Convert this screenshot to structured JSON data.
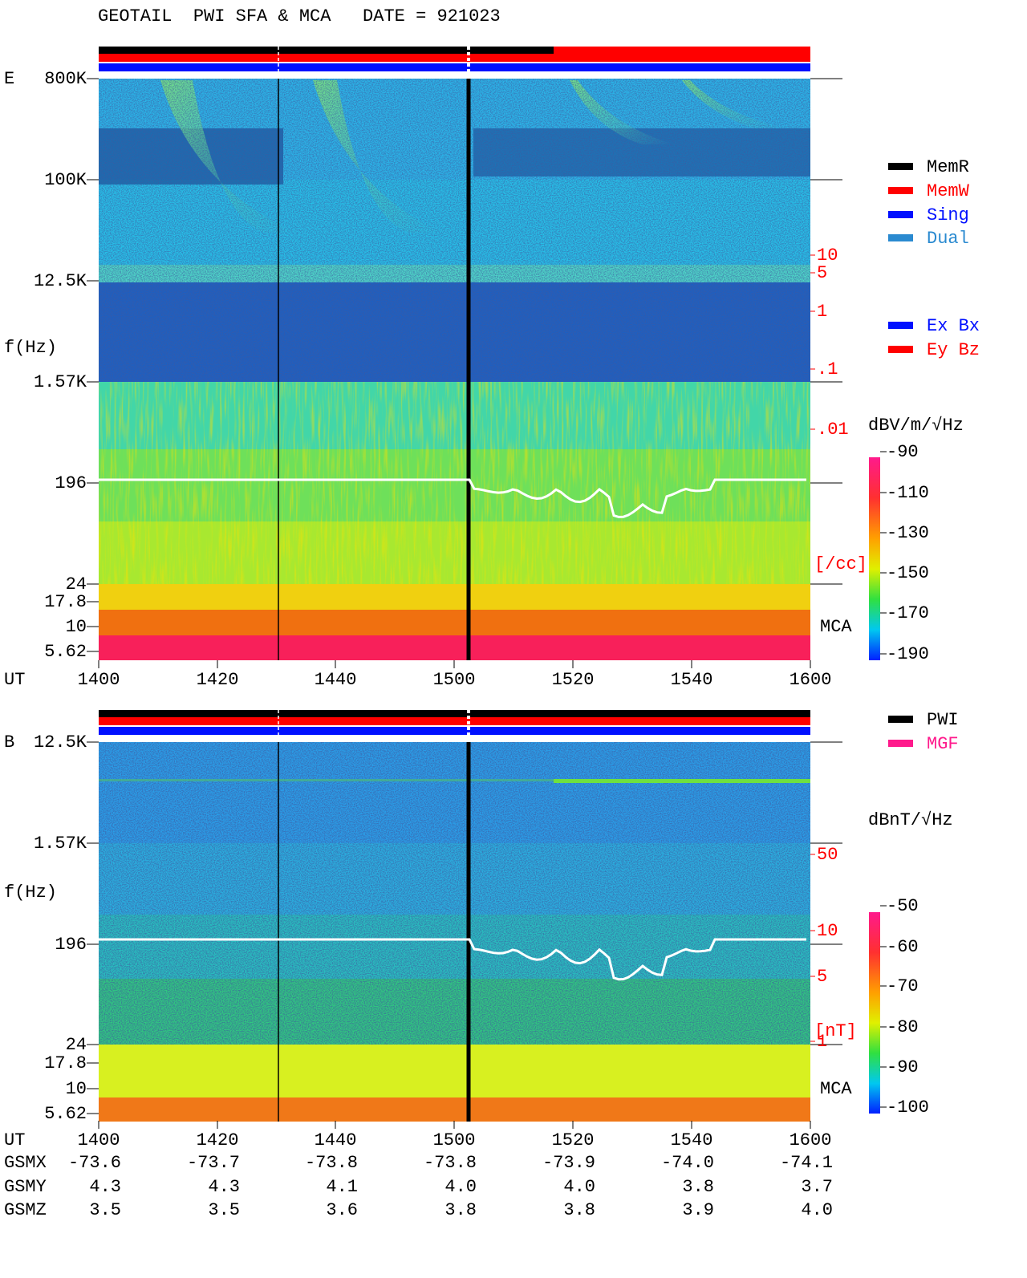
{
  "header": {
    "title": "GEOTAIL  PWI SFA & MCA   DATE = 921023"
  },
  "panels": [
    {
      "component": "E",
      "ylabel": "f(Hz)",
      "yticks": [
        "800K",
        "100K",
        "12.5K",
        "1.57K",
        "196",
        "24",
        "17.8",
        "10",
        "5.62"
      ],
      "right_labels": [
        "10",
        "5",
        "1",
        ".1",
        ".01",
        "[/cc]"
      ],
      "receiver": "MCA",
      "legend": [
        "MemR",
        "MemW",
        "Sing",
        "Dual",
        "Ex Bx",
        "Ey Bz"
      ],
      "colorbar": {
        "label": "dBV/m/√Hz",
        "ticks": [
          "-90",
          "-110",
          "-130",
          "-150",
          "-170",
          "-190"
        ]
      }
    },
    {
      "component": "B",
      "ylabel": "f(Hz)",
      "yticks": [
        "12.5K",
        "1.57K",
        "196",
        "24",
        "17.8",
        "10",
        "5.62"
      ],
      "right_labels": [
        "50",
        "10",
        "5",
        "1",
        "[nT]"
      ],
      "receiver": "MCA",
      "legend": [
        "PWI",
        "MGF"
      ],
      "colorbar": {
        "label": "dBnT/√Hz",
        "ticks": [
          "-50",
          "-60",
          "-70",
          "-80",
          "-90",
          "-100"
        ]
      }
    }
  ],
  "time": {
    "label": "UT",
    "ticks": [
      "1400",
      "1420",
      "1440",
      "1500",
      "1520",
      "1540",
      "1600"
    ]
  },
  "orbit": [
    {
      "label": "GSMX",
      "values": [
        "-73.6",
        "-73.7",
        "-73.8",
        "-73.8",
        "-73.9",
        "-74.0",
        "-74.1"
      ]
    },
    {
      "label": "GSMY",
      "values": [
        "4.3",
        "4.3",
        "4.1",
        "4.0",
        "4.0",
        "3.8",
        "3.7"
      ]
    },
    {
      "label": "GSMZ",
      "values": [
        "3.5",
        "3.5",
        "3.6",
        "3.8",
        "3.8",
        "3.9",
        "4.0"
      ]
    }
  ]
}
